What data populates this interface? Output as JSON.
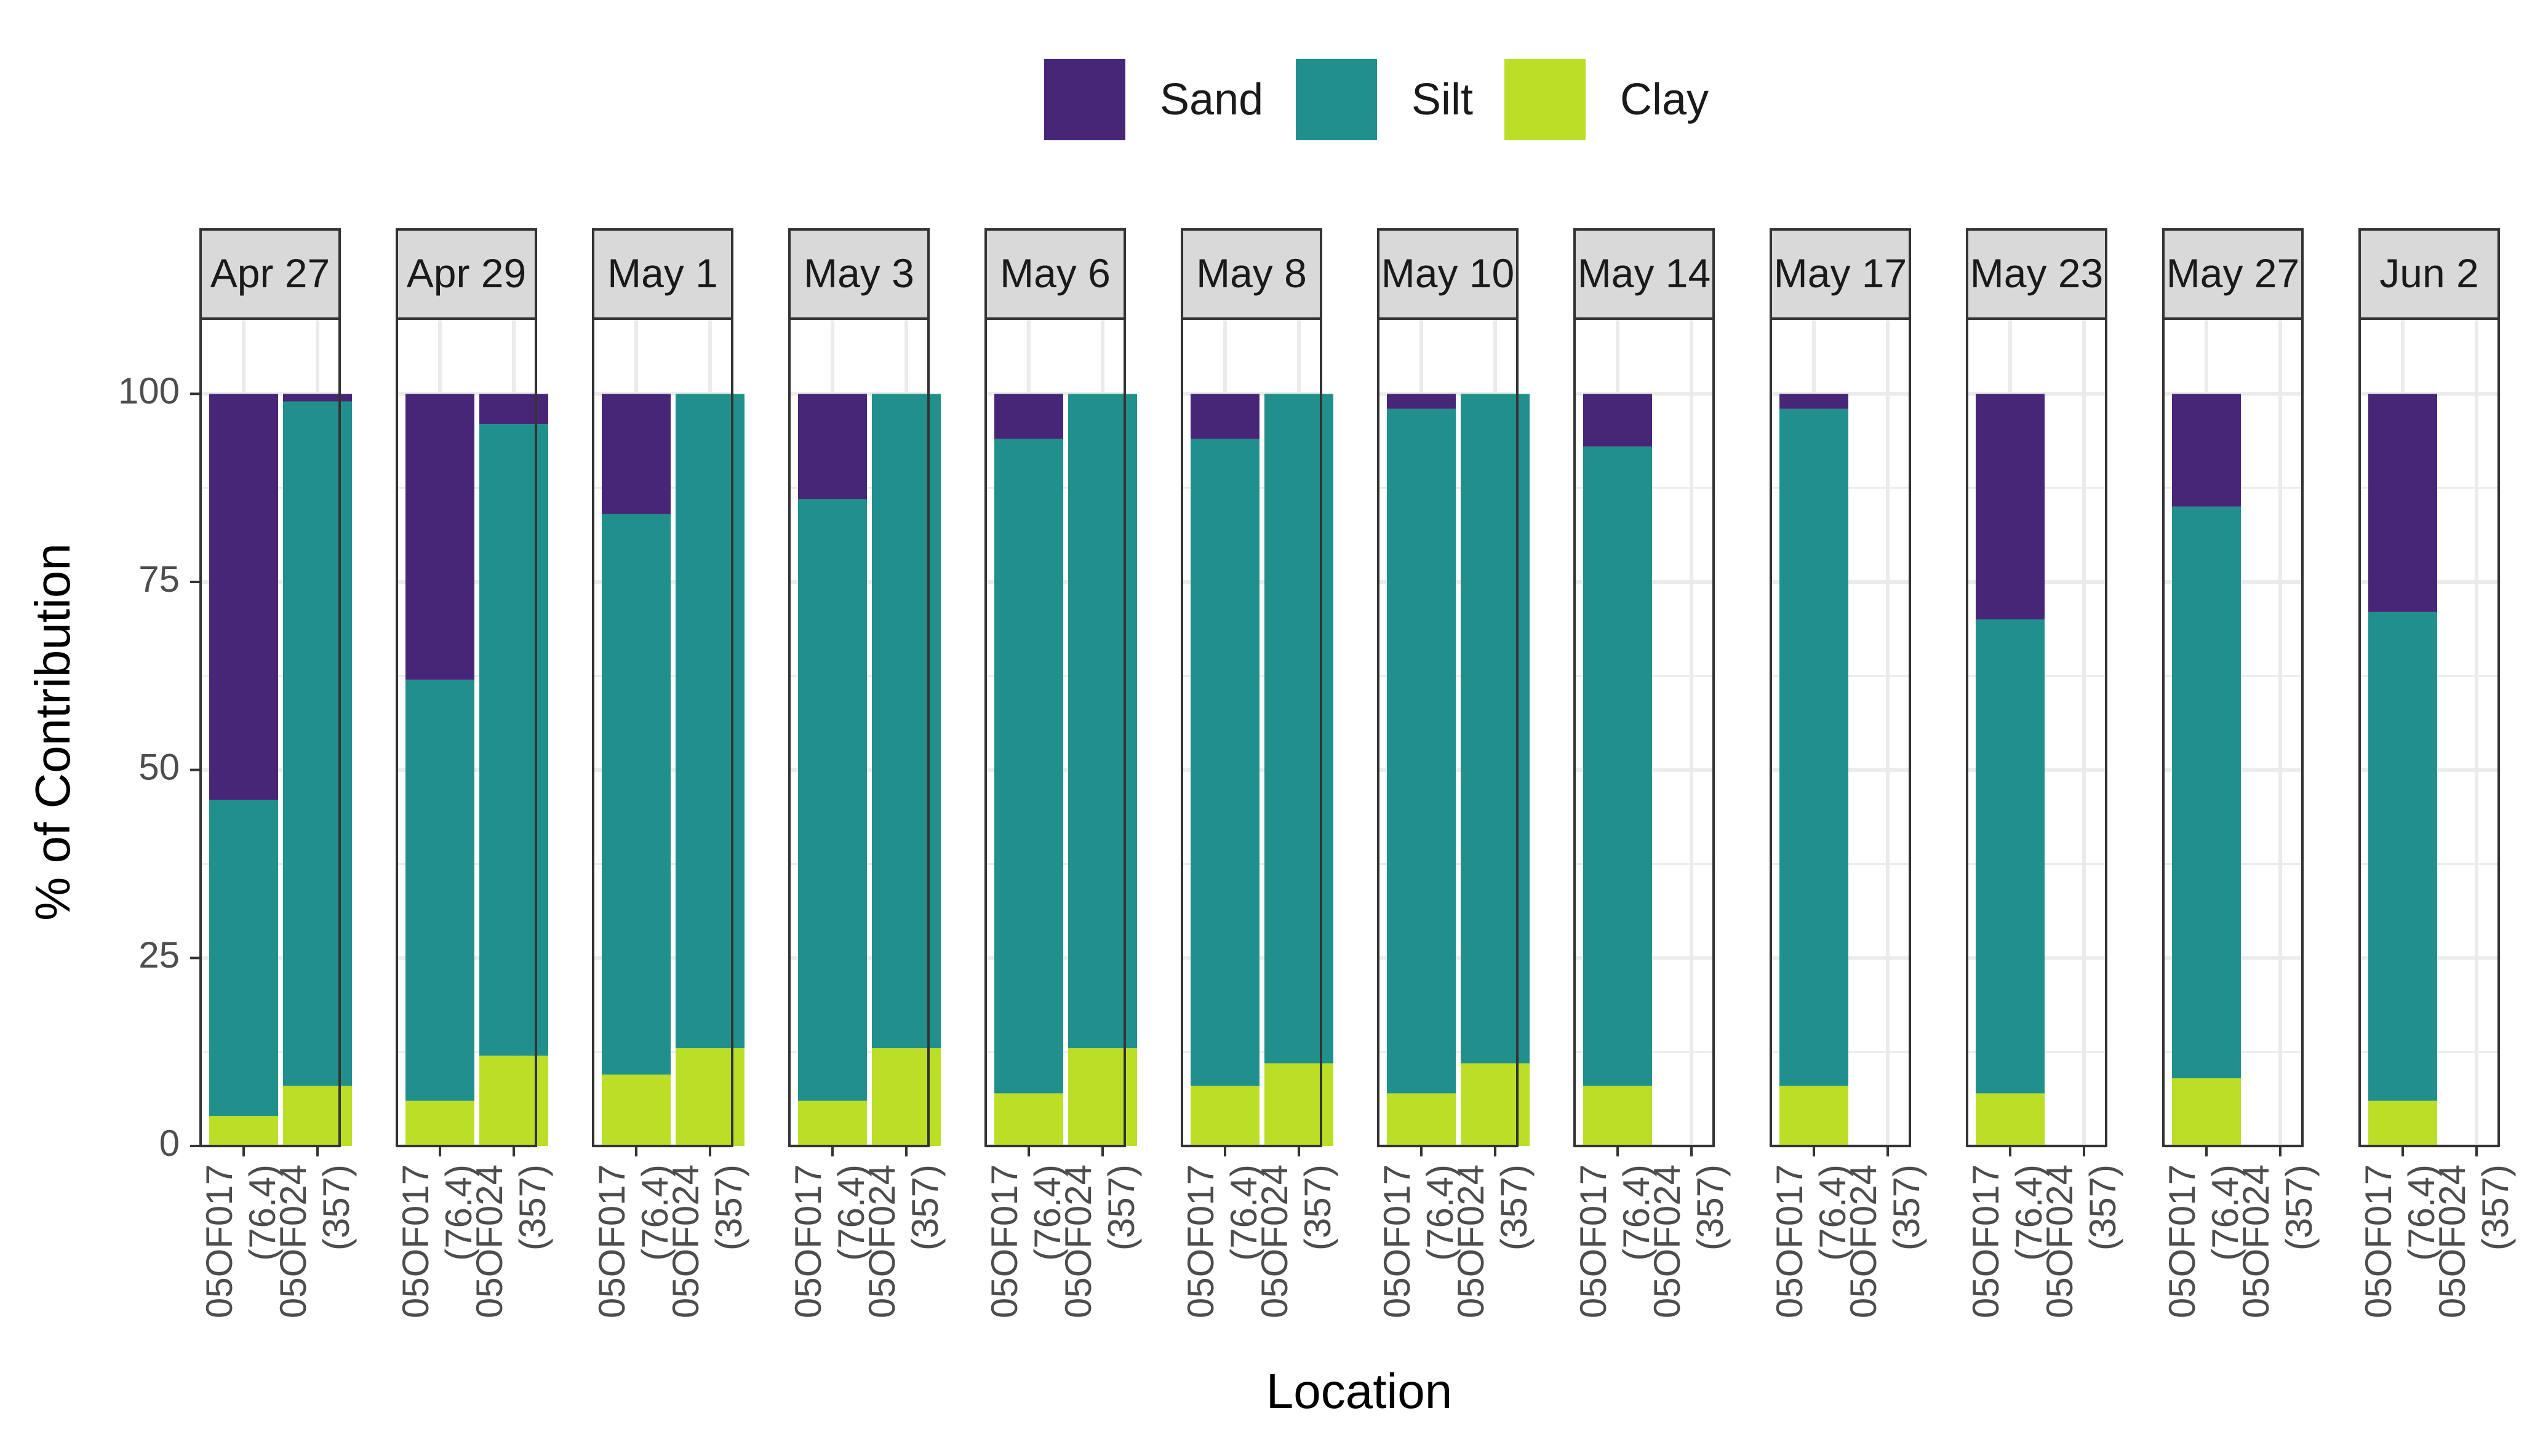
{
  "chart_data": {
    "type": "bar",
    "stacked": true,
    "facet": "Date",
    "xlabel": "Location",
    "ylabel": "% of Contribution",
    "ylim": [
      0,
      110
    ],
    "yticks": [
      0,
      25,
      50,
      75,
      100
    ],
    "grid": true,
    "legend": {
      "position": "top",
      "entries": [
        {
          "name": "Sand",
          "color": "#482677"
        },
        {
          "name": "Silt",
          "color": "#21908C"
        },
        {
          "name": "Clay",
          "color": "#BBDF27"
        }
      ]
    },
    "locations": [
      {
        "line1": "05OF017",
        "line2": "(76.4)"
      },
      {
        "line1": "05OF024",
        "line2": "(357)"
      }
    ],
    "panels": [
      {
        "label": "Apr 27",
        "bars": [
          {
            "Clay": 4,
            "Silt": 42,
            "Sand": 54
          },
          {
            "Clay": 8,
            "Silt": 91,
            "Sand": 1
          }
        ]
      },
      {
        "label": "Apr 29",
        "bars": [
          {
            "Clay": 6,
            "Silt": 56,
            "Sand": 38
          },
          {
            "Clay": 12,
            "Silt": 84,
            "Sand": 4
          }
        ]
      },
      {
        "label": "May 1",
        "bars": [
          {
            "Clay": 9.5,
            "Silt": 74.5,
            "Sand": 16
          },
          {
            "Clay": 13,
            "Silt": 87,
            "Sand": 0
          }
        ]
      },
      {
        "label": "May 3",
        "bars": [
          {
            "Clay": 6,
            "Silt": 80,
            "Sand": 14
          },
          {
            "Clay": 13,
            "Silt": 87,
            "Sand": 0
          }
        ]
      },
      {
        "label": "May 6",
        "bars": [
          {
            "Clay": 7,
            "Silt": 87,
            "Sand": 6
          },
          {
            "Clay": 13,
            "Silt": 87,
            "Sand": 0
          }
        ]
      },
      {
        "label": "May 8",
        "bars": [
          {
            "Clay": 8,
            "Silt": 86,
            "Sand": 6
          },
          {
            "Clay": 11,
            "Silt": 89,
            "Sand": 0
          }
        ]
      },
      {
        "label": "May 10",
        "bars": [
          {
            "Clay": 7,
            "Silt": 91,
            "Sand": 2
          },
          {
            "Clay": 11,
            "Silt": 89,
            "Sand": 0
          }
        ]
      },
      {
        "label": "May 14",
        "bars": [
          {
            "Clay": 8,
            "Silt": 85,
            "Sand": 7
          },
          null
        ]
      },
      {
        "label": "May 17",
        "bars": [
          {
            "Clay": 8,
            "Silt": 90,
            "Sand": 2
          },
          null
        ]
      },
      {
        "label": "May 23",
        "bars": [
          {
            "Clay": 7,
            "Silt": 63,
            "Sand": 30
          },
          null
        ]
      },
      {
        "label": "May 27",
        "bars": [
          {
            "Clay": 9,
            "Silt": 76,
            "Sand": 15
          },
          null
        ]
      },
      {
        "label": "Jun 2",
        "bars": [
          {
            "Clay": 6,
            "Silt": 65,
            "Sand": 29
          },
          null
        ]
      }
    ]
  }
}
